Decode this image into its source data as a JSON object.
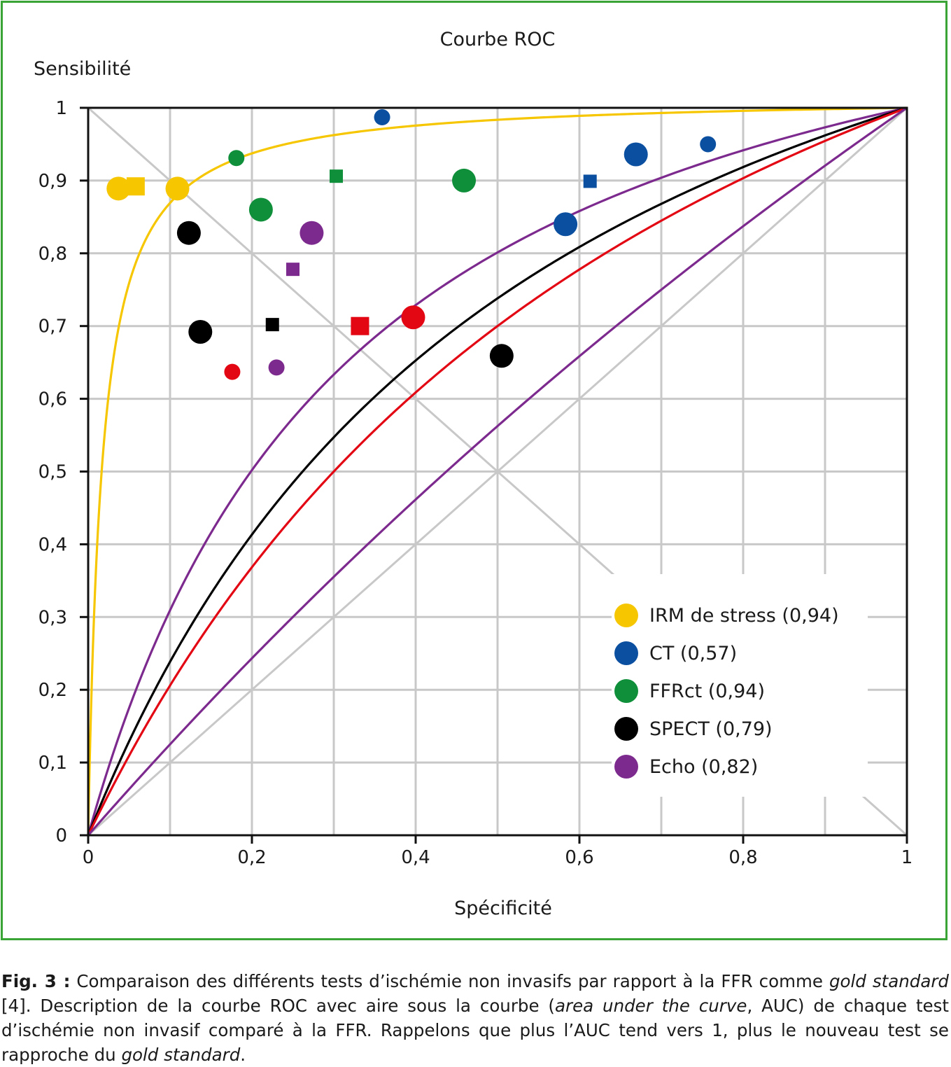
{
  "chart_data": {
    "type": "scatter",
    "title": "Courbe ROC",
    "xlabel": "Spécificité",
    "ylabel": "Sensibilité",
    "xlim": [
      0,
      1
    ],
    "ylim": [
      0,
      1
    ],
    "x_ticks": [
      "0",
      "0,2",
      "0,4",
      "0,6",
      "0,8",
      "1"
    ],
    "y_ticks": [
      "0",
      "0,1",
      "0,2",
      "0,3",
      "0,4",
      "0,5",
      "0,6",
      "0,7",
      "0,8",
      "0,9",
      "1"
    ],
    "grid": true,
    "legend_position": "bottom-right",
    "legend": [
      {
        "label": "IRM de stress (0,94)",
        "color": "#f6c600"
      },
      {
        "label": "CT (0,57)",
        "color": "#0b4fa0"
      },
      {
        "label": "FFRct (0,94)",
        "color": "#0f8f3a"
      },
      {
        "label": "SPECT (0,79)",
        "color": "#000000"
      },
      {
        "label": "Echo (0,82)",
        "color": "#7d2a8e"
      }
    ],
    "curves": [
      {
        "color": "#f6c600",
        "k": 0.017
      },
      {
        "color": "#7d2a8e",
        "k": 0.33
      },
      {
        "color": "#000000",
        "k": 0.55
      },
      {
        "color": "#e30613",
        "k": 0.75
      },
      {
        "color": "#7d2a8e",
        "k": 3.5
      }
    ],
    "series": [
      {
        "name": "IRM de stress (0,94)",
        "color": "#f6c600",
        "points": [
          {
            "x": 0.037,
            "y": 0.889,
            "shape": "circle",
            "size": "large"
          },
          {
            "x": 0.058,
            "y": 0.892,
            "shape": "square",
            "size": "large"
          },
          {
            "x": 0.109,
            "y": 0.889,
            "shape": "circle",
            "size": "large"
          }
        ]
      },
      {
        "name": "CT (0,57)",
        "color": "#0b4fa0",
        "points": [
          {
            "x": 0.359,
            "y": 0.987,
            "shape": "circle",
            "size": "small"
          },
          {
            "x": 0.669,
            "y": 0.936,
            "shape": "circle",
            "size": "large"
          },
          {
            "x": 0.757,
            "y": 0.95,
            "shape": "circle",
            "size": "small"
          },
          {
            "x": 0.613,
            "y": 0.899,
            "shape": "square",
            "size": "small"
          },
          {
            "x": 0.583,
            "y": 0.84,
            "shape": "circle",
            "size": "large"
          }
        ]
      },
      {
        "name": "FFRct (0,94)",
        "color": "#0f8f3a",
        "points": [
          {
            "x": 0.181,
            "y": 0.931,
            "shape": "circle",
            "size": "small"
          },
          {
            "x": 0.303,
            "y": 0.906,
            "shape": "square",
            "size": "small"
          },
          {
            "x": 0.459,
            "y": 0.9,
            "shape": "circle",
            "size": "large"
          },
          {
            "x": 0.211,
            "y": 0.86,
            "shape": "circle",
            "size": "large"
          }
        ]
      },
      {
        "name": "SPECT (0,79)",
        "color": "#000000",
        "points": [
          {
            "x": 0.123,
            "y": 0.828,
            "shape": "circle",
            "size": "large"
          },
          {
            "x": 0.137,
            "y": 0.692,
            "shape": "circle",
            "size": "large"
          },
          {
            "x": 0.225,
            "y": 0.702,
            "shape": "square",
            "size": "small"
          },
          {
            "x": 0.505,
            "y": 0.659,
            "shape": "circle",
            "size": "large"
          }
        ]
      },
      {
        "name": "Echo (0,82)",
        "color": "#7d2a8e",
        "points": [
          {
            "x": 0.273,
            "y": 0.828,
            "shape": "circle",
            "size": "large"
          },
          {
            "x": 0.25,
            "y": 0.778,
            "shape": "square",
            "size": "small"
          },
          {
            "x": 0.23,
            "y": 0.643,
            "shape": "circle",
            "size": "small"
          }
        ]
      },
      {
        "name": "",
        "color": "#e30613",
        "points": [
          {
            "x": 0.176,
            "y": 0.637,
            "shape": "circle",
            "size": "small"
          },
          {
            "x": 0.332,
            "y": 0.7,
            "shape": "square",
            "size": "large"
          },
          {
            "x": 0.397,
            "y": 0.712,
            "shape": "circle",
            "size": "large"
          }
        ]
      }
    ]
  },
  "caption": {
    "label": "Fig. 3 :",
    "text_1": " Comparaison des différents tests d’ischémie non invasifs par rapport à la FFR comme ",
    "italic_1": "gold standard",
    "text_2": " [4]. Description de la courbe ROC avec aire sous la courbe (",
    "italic_2": "area under the curve",
    "text_3": ", AUC) de chaque test d’ischémie non invasif comparé à la FFR. Rappelons que plus l’AUC tend vers 1, plus le nouveau test se rapproche du ",
    "italic_3": "gold standard",
    "text_4": "."
  }
}
